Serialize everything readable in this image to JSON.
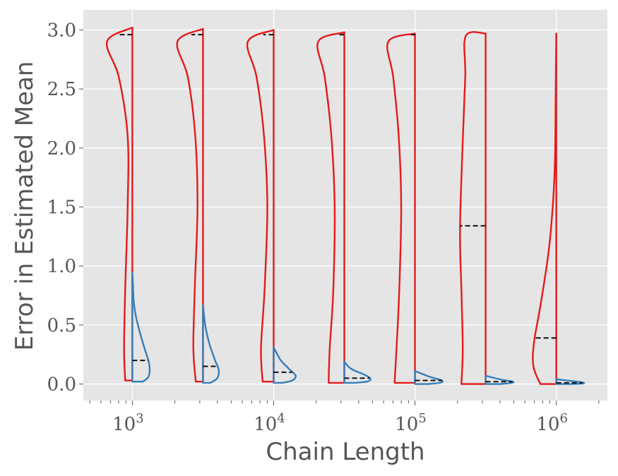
{
  "chart_data": {
    "type": "violin",
    "title": "",
    "xlabel": "Chain Length",
    "ylabel": "Error in Estimated Mean",
    "x_scale": "log",
    "xlim": [
      450,
      2300000
    ],
    "ylim": [
      -0.14,
      3.17
    ],
    "x_ticks": [
      {
        "value": 1000,
        "base": "10",
        "exp": "3"
      },
      {
        "value": 10000,
        "base": "10",
        "exp": "4"
      },
      {
        "value": 100000,
        "base": "10",
        "exp": "5"
      },
      {
        "value": 1000000,
        "base": "10",
        "exp": "6"
      }
    ],
    "y_ticks": [
      {
        "value": 0.0,
        "label": "0.0"
      },
      {
        "value": 0.5,
        "label": "0.5"
      },
      {
        "value": 1.0,
        "label": "1.0"
      },
      {
        "value": 1.5,
        "label": "1.5"
      },
      {
        "value": 2.0,
        "label": "2.0"
      },
      {
        "value": 2.5,
        "label": "2.5"
      },
      {
        "value": 3.0,
        "label": "3.0"
      }
    ],
    "grid": true,
    "background": "#e5e5e5",
    "series": [
      {
        "color": "#e41a1c",
        "side": "left",
        "violins": [
          {
            "x": 1000,
            "min": 0.03,
            "max": 3.02,
            "median": 2.96,
            "profile": [
              [
                0.03,
                0.26
              ],
              [
                0.3,
                0.3
              ],
              [
                0.8,
                0.26
              ],
              [
                1.5,
                0.17
              ],
              [
                2.1,
                0.17
              ],
              [
                2.6,
                0.49
              ],
              [
                2.9,
                0.92
              ],
              [
                3.02,
                0.0
              ]
            ]
          },
          {
            "x": 3162,
            "min": 0.02,
            "max": 3.01,
            "median": 2.96,
            "profile": [
              [
                0.02,
                0.26
              ],
              [
                0.3,
                0.35
              ],
              [
                0.8,
                0.3
              ],
              [
                1.5,
                0.2
              ],
              [
                2.1,
                0.28
              ],
              [
                2.6,
                0.55
              ],
              [
                2.9,
                0.93
              ],
              [
                3.01,
                0.0
              ]
            ]
          },
          {
            "x": 10000,
            "min": 0.02,
            "max": 3.0,
            "median": 2.96,
            "profile": [
              [
                0.02,
                0.4
              ],
              [
                0.3,
                0.46
              ],
              [
                0.8,
                0.33
              ],
              [
                1.5,
                0.23
              ],
              [
                2.1,
                0.35
              ],
              [
                2.6,
                0.62
              ],
              [
                2.9,
                0.94
              ],
              [
                3.0,
                0.0
              ]
            ]
          },
          {
            "x": 31623,
            "min": 0.01,
            "max": 2.98,
            "median": 2.96,
            "profile": [
              [
                0.01,
                0.57
              ],
              [
                0.3,
                0.53
              ],
              [
                0.8,
                0.4
              ],
              [
                1.5,
                0.35
              ],
              [
                2.1,
                0.47
              ],
              [
                2.6,
                0.71
              ],
              [
                2.9,
                0.95
              ],
              [
                2.98,
                0.0
              ]
            ]
          },
          {
            "x": 100000,
            "min": 0.01,
            "max": 2.97,
            "median": 2.96,
            "profile": [
              [
                0.01,
                0.74
              ],
              [
                0.3,
                0.67
              ],
              [
                0.8,
                0.57
              ],
              [
                1.5,
                0.5
              ],
              [
                2.1,
                0.59
              ],
              [
                2.6,
                0.79
              ],
              [
                2.9,
                0.97
              ],
              [
                2.97,
                0.0
              ]
            ]
          },
          {
            "x": 316228,
            "min": 0.0,
            "max": 2.97,
            "median": 1.34,
            "profile": [
              [
                0.0,
                0.88
              ],
              [
                0.3,
                0.83
              ],
              [
                0.8,
                0.88
              ],
              [
                1.3,
                0.93
              ],
              [
                2.0,
                0.84
              ],
              [
                2.6,
                0.74
              ],
              [
                2.95,
                0.72
              ],
              [
                2.97,
                0.0
              ]
            ]
          },
          {
            "x": 1000000,
            "min": 0.0,
            "max": 2.97,
            "median": 0.39,
            "profile": [
              [
                0.0,
                0.58
              ],
              [
                0.15,
                0.83
              ],
              [
                0.35,
                0.81
              ],
              [
                0.7,
                0.55
              ],
              [
                1.2,
                0.24
              ],
              [
                1.8,
                0.06
              ],
              [
                2.5,
                0.02
              ],
              [
                2.97,
                0.0
              ]
            ]
          }
        ]
      },
      {
        "color": "#377eb8",
        "side": "right",
        "violins": [
          {
            "x": 1000,
            "min": 0.02,
            "max": 0.94,
            "median": 0.2,
            "profile": [
              [
                0.02,
                0.38
              ],
              [
                0.06,
                0.58
              ],
              [
                0.13,
                0.63
              ],
              [
                0.2,
                0.58
              ],
              [
                0.35,
                0.38
              ],
              [
                0.55,
                0.15
              ],
              [
                0.7,
                0.05
              ],
              [
                0.85,
                0.02
              ],
              [
                0.94,
                0.0
              ]
            ]
          },
          {
            "x": 3162,
            "min": 0.01,
            "max": 0.67,
            "median": 0.15,
            "profile": [
              [
                0.01,
                0.27
              ],
              [
                0.05,
                0.52
              ],
              [
                0.12,
                0.57
              ],
              [
                0.2,
                0.44
              ],
              [
                0.35,
                0.22
              ],
              [
                0.5,
                0.08
              ],
              [
                0.67,
                0.0
              ]
            ]
          },
          {
            "x": 10000,
            "min": 0.01,
            "max": 0.31,
            "median": 0.1,
            "profile": [
              [
                0.01,
                0.32
              ],
              [
                0.03,
                0.67
              ],
              [
                0.07,
                0.8
              ],
              [
                0.13,
                0.55
              ],
              [
                0.2,
                0.26
              ],
              [
                0.27,
                0.09
              ],
              [
                0.31,
                0.0
              ]
            ]
          },
          {
            "x": 31623,
            "min": 0.01,
            "max": 0.19,
            "median": 0.05,
            "profile": [
              [
                0.01,
                0.36
              ],
              [
                0.02,
                0.82
              ],
              [
                0.045,
                0.95
              ],
              [
                0.08,
                0.72
              ],
              [
                0.13,
                0.24
              ],
              [
                0.19,
                0.0
              ]
            ]
          },
          {
            "x": 100000,
            "min": 0.0,
            "max": 0.11,
            "median": 0.03,
            "profile": [
              [
                0.0,
                0.46
              ],
              [
                0.01,
                0.9
              ],
              [
                0.03,
                0.98
              ],
              [
                0.06,
                0.55
              ],
              [
                0.11,
                0.0
              ]
            ]
          },
          {
            "x": 316228,
            "min": 0.0,
            "max": 0.07,
            "median": 0.02,
            "profile": [
              [
                0.0,
                0.52
              ],
              [
                0.01,
                0.94
              ],
              [
                0.02,
                0.98
              ],
              [
                0.04,
                0.52
              ],
              [
                0.07,
                0.0
              ]
            ]
          },
          {
            "x": 1000000,
            "min": 0.0,
            "max": 0.04,
            "median": 0.01,
            "profile": [
              [
                0.0,
                0.58
              ],
              [
                0.005,
                0.98
              ],
              [
                0.015,
                0.92
              ],
              [
                0.03,
                0.38
              ],
              [
                0.04,
                0.0
              ]
            ]
          }
        ]
      }
    ]
  }
}
